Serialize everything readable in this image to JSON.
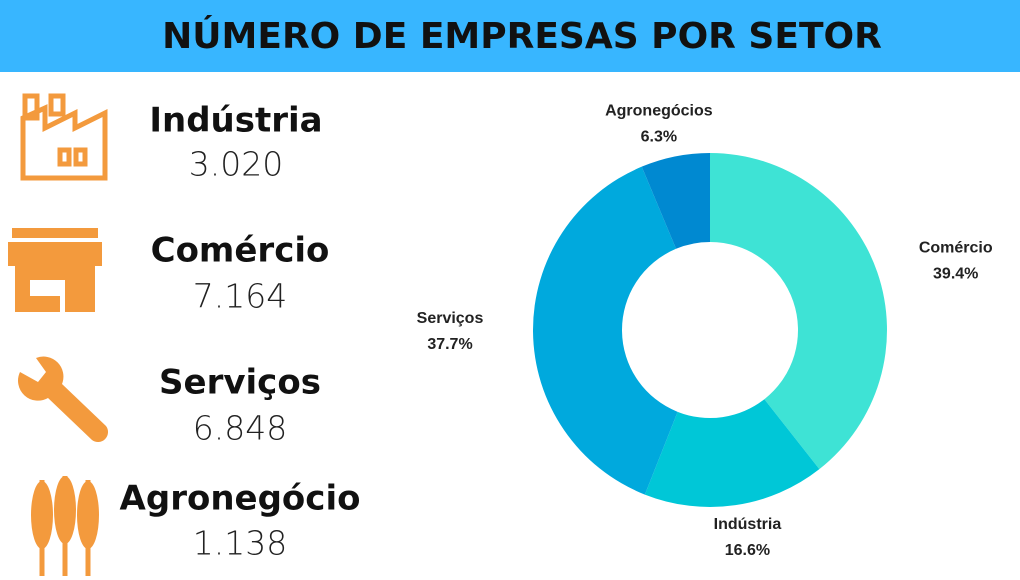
{
  "header": {
    "title": "NÚMERO DE EMPRESAS POR SETOR"
  },
  "stats": [
    {
      "label": "Indústria",
      "value": "3.020"
    },
    {
      "label": "Comércio",
      "value": "7.164"
    },
    {
      "label": "Serviços",
      "value": "6.848"
    },
    {
      "label": "Agronegócio",
      "value": "1.138"
    }
  ],
  "chart_data": {
    "type": "pie",
    "donut": true,
    "categories": [
      "Comércio",
      "Indústria",
      "Serviços",
      "Agronegócios"
    ],
    "values": [
      39.4,
      16.6,
      37.7,
      6.3
    ],
    "value_labels": [
      "39.4%",
      "16.6%",
      "37.7%",
      "6.3%"
    ],
    "colors": [
      "#3ee3d5",
      "#00c7d7",
      "#00a9dd",
      "#0089d1"
    ]
  }
}
